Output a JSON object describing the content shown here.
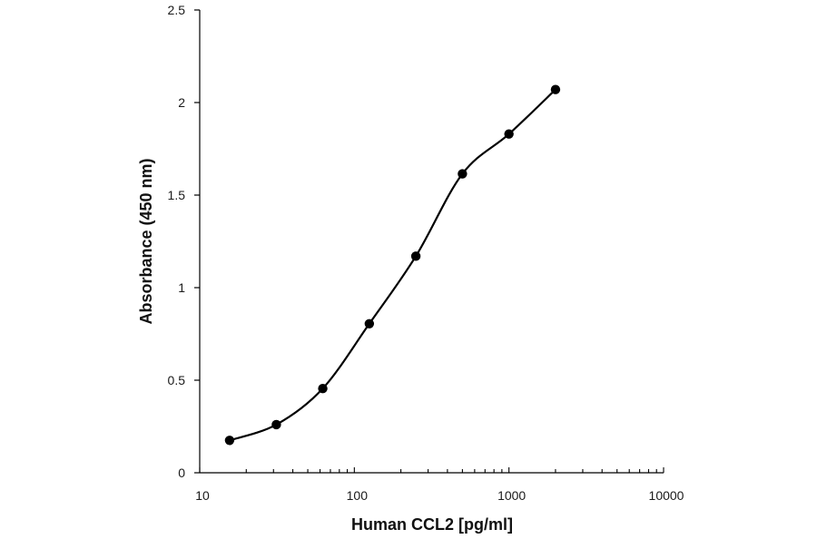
{
  "chart_data": {
    "type": "line",
    "xlabel": "Human CCL2 [pg/ml]",
    "ylabel": "Absorbance (450 nm)",
    "x_scale": "log",
    "xlim": [
      10,
      10000
    ],
    "ylim": [
      0,
      2.5
    ],
    "x_ticks": [
      "10",
      "100",
      "1000",
      "10000"
    ],
    "y_ticks": [
      "0",
      "0.5",
      "1",
      "1.5",
      "2",
      "2.5"
    ],
    "grid": false,
    "legend": "none",
    "series": [
      {
        "x": [
          15.6,
          31.3,
          62.5,
          125,
          250,
          500,
          1000,
          2000
        ],
        "y": [
          0.175,
          0.26,
          0.455,
          0.805,
          1.17,
          1.615,
          1.83,
          2.07
        ]
      }
    ],
    "colors": {
      "line": "#000000",
      "marker": "#000000",
      "axis": "#000000"
    }
  }
}
